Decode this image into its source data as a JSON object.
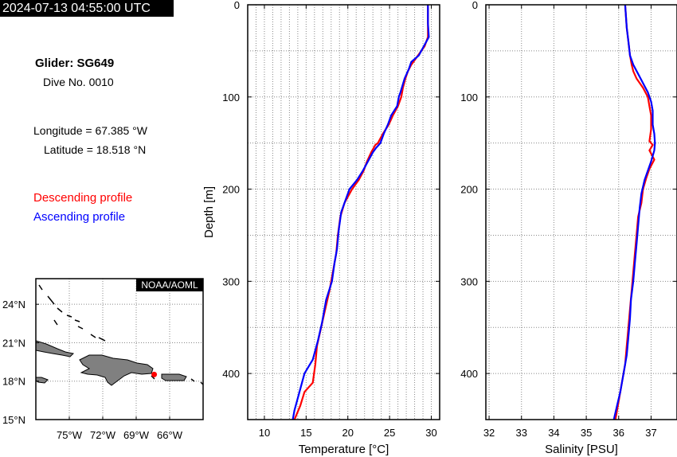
{
  "timestamp": "2024-07-13 04:55:00 UTC",
  "glider": "Glider: SG649",
  "dive": "Dive No. 0010",
  "longitude": "Longitude = 67.385 °W",
  "latitude": "Latitude = 18.518 °N",
  "legend": {
    "descending": "Descending profile",
    "ascending": "Ascending profile"
  },
  "colors": {
    "descending": "#ff0000",
    "ascending": "#0000ff",
    "grid": "#888888",
    "land": "#808080"
  },
  "map": {
    "credit": "NOAA/AOML",
    "lat_labels": [
      "24°N",
      "21°N",
      "18°N",
      "15°N"
    ],
    "lon_labels": [
      "75°W",
      "72°W",
      "69°W",
      "66°W"
    ],
    "xlim": [
      -78,
      -63
    ],
    "ylim": [
      15,
      26
    ],
    "lat_ticks": [
      24,
      21,
      18,
      15
    ],
    "lon_ticks": [
      -75,
      -72,
      -69,
      -66
    ],
    "marker": {
      "lon": -67.385,
      "lat": 18.518
    }
  },
  "chart_data": [
    {
      "type": "line",
      "xlabel": "Temperature [°C]",
      "ylabel": "Depth [m]",
      "xlim": [
        8,
        31
      ],
      "ylim": [
        450,
        0
      ],
      "xticks": [
        10,
        15,
        20,
        25,
        30
      ],
      "yticks": [
        0,
        100,
        200,
        300,
        400
      ],
      "xticklabels": [
        "10",
        "15",
        "20",
        "25",
        "30"
      ],
      "yticklabels": [
        "0",
        "100",
        "200",
        "300",
        "400"
      ],
      "grid": true,
      "series": [
        {
          "name": "Descending profile",
          "points": [
            [
              29.6,
              0
            ],
            [
              29.6,
              20
            ],
            [
              29.6,
              35
            ],
            [
              29.2,
              45
            ],
            [
              28.4,
              55
            ],
            [
              27.6,
              65
            ],
            [
              27.2,
              72
            ],
            [
              26.9,
              80
            ],
            [
              26.6,
              90
            ],
            [
              26.4,
              100
            ],
            [
              26,
              110
            ],
            [
              25.4,
              120
            ],
            [
              24.9,
              130
            ],
            [
              24.2,
              140
            ],
            [
              23.6,
              150
            ],
            [
              23.3,
              152
            ],
            [
              22.8,
              160
            ],
            [
              22.3,
              170
            ],
            [
              21.9,
              180
            ],
            [
              21.3,
              190
            ],
            [
              20.5,
              200
            ],
            [
              19.6,
              215
            ],
            [
              19.1,
              230
            ],
            [
              18.8,
              250
            ],
            [
              18.6,
              270
            ],
            [
              18.2,
              290
            ],
            [
              17.8,
              310
            ],
            [
              17.3,
              330
            ],
            [
              16.8,
              350
            ],
            [
              16.3,
              370
            ],
            [
              16.1,
              390
            ],
            [
              15.8,
              410
            ],
            [
              14.8,
              420
            ],
            [
              14.3,
              435
            ],
            [
              13.6,
              450
            ]
          ]
        },
        {
          "name": "Ascending profile",
          "points": [
            [
              29.6,
              0
            ],
            [
              29.6,
              20
            ],
            [
              29.7,
              35
            ],
            [
              29.1,
              45
            ],
            [
              28.5,
              55
            ],
            [
              27.6,
              62
            ],
            [
              27.3,
              70
            ],
            [
              26.8,
              80
            ],
            [
              26.3,
              95
            ],
            [
              26.1,
              100
            ],
            [
              25.9,
              110
            ],
            [
              25.2,
              120
            ],
            [
              24.8,
              130
            ],
            [
              24.3,
              140
            ],
            [
              23.9,
              150
            ],
            [
              23.4,
              155
            ],
            [
              23,
              160
            ],
            [
              22.4,
              170
            ],
            [
              21.8,
              180
            ],
            [
              21.1,
              190
            ],
            [
              20.2,
              200
            ],
            [
              19.8,
              210
            ],
            [
              19.2,
              225
            ],
            [
              18.9,
              245
            ],
            [
              18.7,
              265
            ],
            [
              18.4,
              280
            ],
            [
              18.1,
              300
            ],
            [
              17.4,
              320
            ],
            [
              16.9,
              345
            ],
            [
              16.4,
              365
            ],
            [
              15.8,
              385
            ],
            [
              14.8,
              400
            ],
            [
              14.2,
              420
            ],
            [
              13.6,
              440
            ],
            [
              13.4,
              450
            ]
          ]
        }
      ]
    },
    {
      "type": "line",
      "xlabel": "Salinity [PSU]",
      "ylabel": "",
      "xlim": [
        31.9,
        37.8
      ],
      "ylim": [
        450,
        0
      ],
      "xticks": [
        32,
        33,
        34,
        35,
        36,
        37
      ],
      "yticks": [
        0,
        100,
        200,
        300,
        400
      ],
      "xticklabels": [
        "32",
        "33",
        "34",
        "35",
        "36",
        "37"
      ],
      "yticklabels": [
        "0",
        "100",
        "200",
        "300",
        "400"
      ],
      "grid": true,
      "series": [
        {
          "name": "Descending profile",
          "points": [
            [
              36.2,
              0
            ],
            [
              36.25,
              25
            ],
            [
              36.3,
              40
            ],
            [
              36.35,
              55
            ],
            [
              36.4,
              65
            ],
            [
              36.45,
              72
            ],
            [
              36.55,
              80
            ],
            [
              36.75,
              90
            ],
            [
              36.9,
              100
            ],
            [
              36.95,
              110
            ],
            [
              37,
              120
            ],
            [
              37,
              135
            ],
            [
              36.95,
              148
            ],
            [
              37.05,
              152
            ],
            [
              36.95,
              158
            ],
            [
              37.1,
              168
            ],
            [
              36.95,
              178
            ],
            [
              36.85,
              188
            ],
            [
              36.75,
              200
            ],
            [
              36.7,
              215
            ],
            [
              36.6,
              230
            ],
            [
              36.55,
              250
            ],
            [
              36.5,
              270
            ],
            [
              36.45,
              290
            ],
            [
              36.4,
              310
            ],
            [
              36.35,
              330
            ],
            [
              36.3,
              350
            ],
            [
              36.25,
              370
            ],
            [
              36.2,
              390
            ],
            [
              36.1,
              410
            ],
            [
              36,
              430
            ],
            [
              35.9,
              450
            ]
          ]
        },
        {
          "name": "Ascending profile",
          "points": [
            [
              36.2,
              0
            ],
            [
              36.25,
              25
            ],
            [
              36.3,
              40
            ],
            [
              36.35,
              55
            ],
            [
              36.45,
              65
            ],
            [
              36.6,
              75
            ],
            [
              36.75,
              85
            ],
            [
              36.9,
              95
            ],
            [
              37,
              105
            ],
            [
              37.05,
              115
            ],
            [
              37.05,
              130
            ],
            [
              37.1,
              140
            ],
            [
              37.12,
              150
            ],
            [
              37.1,
              158
            ],
            [
              37,
              170
            ],
            [
              36.9,
              180
            ],
            [
              36.8,
              190
            ],
            [
              36.7,
              205
            ],
            [
              36.65,
              220
            ],
            [
              36.6,
              240
            ],
            [
              36.55,
              260
            ],
            [
              36.5,
              280
            ],
            [
              36.45,
              300
            ],
            [
              36.38,
              320
            ],
            [
              36.35,
              340
            ],
            [
              36.3,
              360
            ],
            [
              36.25,
              380
            ],
            [
              36.15,
              400
            ],
            [
              36.05,
              420
            ],
            [
              35.95,
              435
            ],
            [
              35.85,
              450
            ]
          ]
        }
      ]
    }
  ]
}
